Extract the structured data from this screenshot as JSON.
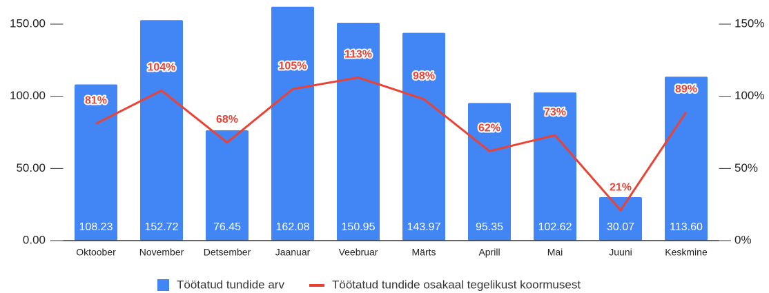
{
  "chart_data": {
    "type": "bar",
    "categories": [
      "Oktoober",
      "November",
      "Detsember",
      "Jaanuar",
      "Veebruar",
      "Märts",
      "Aprill",
      "Mai",
      "Juuni",
      "Keskmine"
    ],
    "series": [
      {
        "name": "Töötatud tundide arv",
        "type": "bar",
        "color": "#4285f4",
        "values": [
          108.23,
          152.72,
          76.45,
          162.08,
          150.95,
          143.97,
          95.35,
          102.62,
          30.07,
          113.6
        ],
        "value_labels": [
          "108.23",
          "152.72",
          "76.45",
          "162.08",
          "150.95",
          "143.97",
          "95.35",
          "102.62",
          "30.07",
          "113.60"
        ]
      },
      {
        "name": "Töötatud tundide osakaal tegelikust koormusest",
        "type": "line",
        "axis": "y2",
        "color": "#ea4335",
        "values": [
          81,
          104,
          68,
          105,
          113,
          98,
          62,
          73,
          21,
          89
        ],
        "value_labels": [
          "81%",
          "104%",
          "68%",
          "105%",
          "113%",
          "98%",
          "62%",
          "73%",
          "21%",
          "89%"
        ]
      }
    ],
    "ylim": [
      0,
      165
    ],
    "yticks": [
      {
        "value": 0,
        "label": "0.00"
      },
      {
        "value": 50,
        "label": "50.00"
      },
      {
        "value": 100,
        "label": "100.00"
      },
      {
        "value": 150,
        "label": "150.00"
      }
    ],
    "y2lim": [
      0,
      165
    ],
    "y2ticks": [
      {
        "value": 0,
        "label": "0%"
      },
      {
        "value": 50,
        "label": "50%"
      },
      {
        "value": 100,
        "label": "100%"
      },
      {
        "value": 150,
        "label": "150%"
      }
    ],
    "grid": false,
    "legend": "bottom"
  }
}
